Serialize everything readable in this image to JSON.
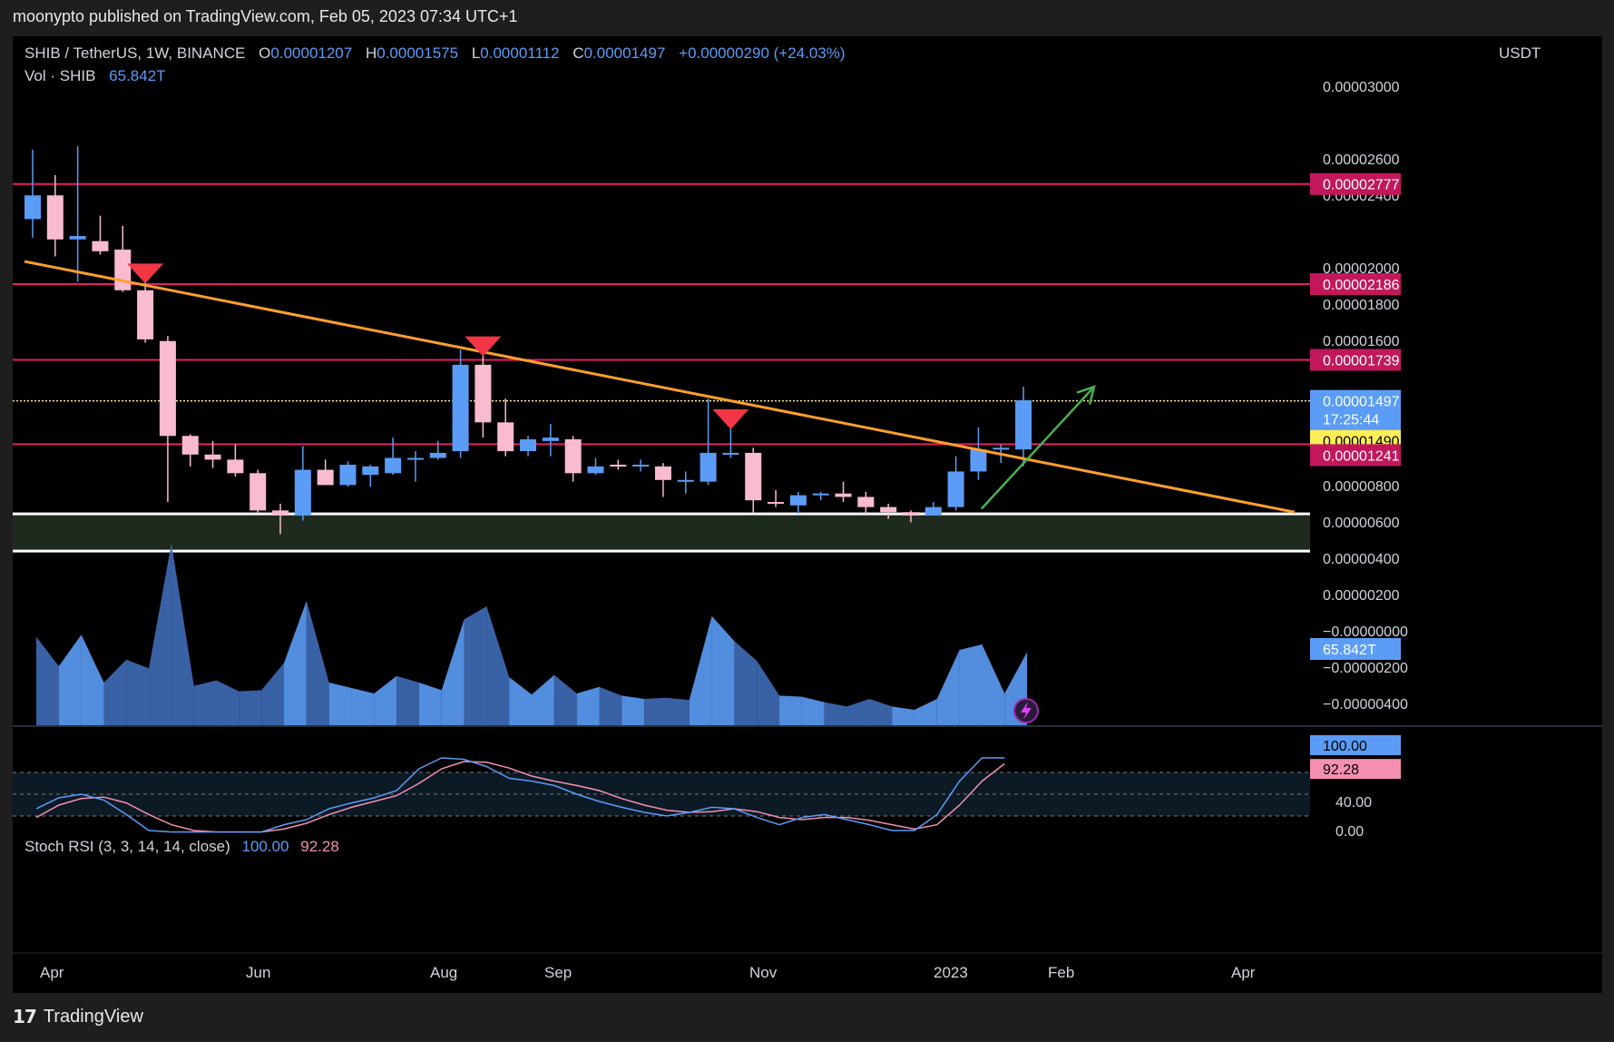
{
  "header": {
    "published_text": "moonypto published on TradingView.com, Feb 05, 2023 07:34 UTC+1"
  },
  "legend": {
    "symbol": "SHIB / TetherUS, 1W, BINANCE",
    "o_label": "O",
    "o_value": "0.00001207",
    "h_label": "H",
    "h_value": "0.00001575",
    "l_label": "L",
    "l_value": "0.00001112",
    "c_label": "C",
    "c_value": "0.00001497",
    "change": "+0.00000290 (+24.03%)",
    "vol_label": "Vol · SHIB",
    "vol_value": "65.842T"
  },
  "price_axis": {
    "unit": "USDT",
    "ticks": [
      "0.00003000",
      "0.00002600",
      "0.00002400",
      "0.00002000",
      "0.00001800",
      "0.00001600",
      "0.00001000",
      "0.00000800",
      "0.00000600",
      "0.00000400",
      "0.00000200",
      "−0.00000000",
      "−0.00000200",
      "−0.00000400"
    ],
    "badges": {
      "r1": "0.00002777",
      "r2": "0.00002186",
      "r3": "0.00001739",
      "last": "0.00001497",
      "countdown": "17:25:44",
      "yellow": "0.00001490",
      "r4": "0.00001241",
      "vol": "65.842T"
    }
  },
  "stoch_rsi": {
    "label": "Stoch RSI (3, 3, 14, 14, close)",
    "k_value": "100.00",
    "d_value": "92.28",
    "ticks": [
      "100.00",
      "40.00",
      "0.00"
    ],
    "badge_k": "100.00",
    "badge_d": "92.28"
  },
  "time_axis": [
    "Apr",
    "Jun",
    "Aug",
    "Sep",
    "Nov",
    "2023",
    "Feb",
    "Apr"
  ],
  "footer": {
    "brand": "TradingView"
  },
  "colors": {
    "up": "#5b9cf6",
    "down": "#f8bbd0",
    "resistance": "#e91e63",
    "trend": "#ff9f2e",
    "support_band": "#1f2a1f",
    "yellow_line": "#ffee90",
    "stoch_k": "#5b9cf6",
    "stoch_d": "#f48fb1"
  },
  "chart_data": {
    "type": "candlestick",
    "title": "SHIB / TetherUS, 1W, BINANCE",
    "ylabel": "USDT",
    "ylim": [
      -4.5e-06,
      3.14e-05
    ],
    "horizontal_levels": [
      2.777e-05,
      2.186e-05,
      1.739e-05,
      1.497e-05,
      1.241e-05
    ],
    "support_zone": [
      6.1e-06,
      8.3e-06
    ],
    "candles": [
      {
        "o": 2.57e-05,
        "h": 2.98e-05,
        "l": 2.46e-05,
        "c": 2.71e-05
      },
      {
        "o": 2.71e-05,
        "h": 2.83e-05,
        "l": 2.35e-05,
        "c": 2.45e-05
      },
      {
        "o": 2.45e-05,
        "h": 3e-05,
        "l": 2.2e-05,
        "c": 2.47e-05
      },
      {
        "o": 2.44e-05,
        "h": 2.59e-05,
        "l": 2.36e-05,
        "c": 2.38e-05
      },
      {
        "o": 2.39e-05,
        "h": 2.53e-05,
        "l": 2.14e-05,
        "c": 2.15e-05
      },
      {
        "o": 2.15e-05,
        "h": 2.2e-05,
        "l": 1.84e-05,
        "c": 1.86e-05
      },
      {
        "o": 1.85e-05,
        "h": 1.88e-05,
        "l": 9e-06,
        "c": 1.29e-05
      },
      {
        "o": 1.29e-05,
        "h": 1.3e-05,
        "l": 1.11e-05,
        "c": 1.18e-05
      },
      {
        "o": 1.18e-05,
        "h": 1.26e-05,
        "l": 1.1e-05,
        "c": 1.15e-05
      },
      {
        "o": 1.15e-05,
        "h": 1.24e-05,
        "l": 1.05e-05,
        "c": 1.07e-05
      },
      {
        "o": 1.07e-05,
        "h": 1.09e-05,
        "l": 8.3e-06,
        "c": 8.5e-06
      },
      {
        "o": 8.5e-06,
        "h": 8.9e-06,
        "l": 7.1e-06,
        "c": 8.2e-06
      },
      {
        "o": 8.2e-06,
        "h": 1.23e-05,
        "l": 7.9e-06,
        "c": 1.09e-05
      },
      {
        "o": 1.09e-05,
        "h": 1.15e-05,
        "l": 1e-05,
        "c": 1e-05
      },
      {
        "o": 1e-05,
        "h": 1.14e-05,
        "l": 9.9e-06,
        "c": 1.12e-05
      },
      {
        "o": 1.06e-05,
        "h": 1.12e-05,
        "l": 9.9e-06,
        "c": 1.11e-05
      },
      {
        "o": 1.07e-05,
        "h": 1.28e-05,
        "l": 1.06e-05,
        "c": 1.16e-05
      },
      {
        "o": 1.16e-05,
        "h": 1.2e-05,
        "l": 1.02e-05,
        "c": 1.16e-05
      },
      {
        "o": 1.16e-05,
        "h": 1.26e-05,
        "l": 1.15e-05,
        "c": 1.19e-05
      },
      {
        "o": 1.2e-05,
        "h": 1.8e-05,
        "l": 1.16e-05,
        "c": 1.71e-05
      },
      {
        "o": 1.71e-05,
        "h": 1.77e-05,
        "l": 1.28e-05,
        "c": 1.37e-05
      },
      {
        "o": 1.37e-05,
        "h": 1.51e-05,
        "l": 1.17e-05,
        "c": 1.2e-05
      },
      {
        "o": 1.2e-05,
        "h": 1.29e-05,
        "l": 1.17e-05,
        "c": 1.27e-05
      },
      {
        "o": 1.26e-05,
        "h": 1.36e-05,
        "l": 1.17e-05,
        "c": 1.28e-05
      },
      {
        "o": 1.27e-05,
        "h": 1.29e-05,
        "l": 1.02e-05,
        "c": 1.07e-05
      },
      {
        "o": 1.07e-05,
        "h": 1.16e-05,
        "l": 1.06e-05,
        "c": 1.11e-05
      },
      {
        "o": 1.12e-05,
        "h": 1.15e-05,
        "l": 1.09e-05,
        "c": 1.11e-05
      },
      {
        "o": 1.11e-05,
        "h": 1.15e-05,
        "l": 1.08e-05,
        "c": 1.12e-05
      },
      {
        "o": 1.11e-05,
        "h": 1.13e-05,
        "l": 9.3e-06,
        "c": 1.03e-05
      },
      {
        "o": 1.03e-05,
        "h": 1.08e-05,
        "l": 9.5e-06,
        "c": 1.03e-05
      },
      {
        "o": 1.02e-05,
        "h": 1.51e-05,
        "l": 1e-05,
        "c": 1.19e-05
      },
      {
        "o": 1.19e-05,
        "h": 1.34e-05,
        "l": 1.16e-05,
        "c": 1.19e-05
      },
      {
        "o": 1.19e-05,
        "h": 1.22e-05,
        "l": 8.3e-06,
        "c": 9.1e-06
      },
      {
        "o": 9e-06,
        "h": 9.7e-06,
        "l": 8.7e-06,
        "c": 8.9e-06
      },
      {
        "o": 8.8e-06,
        "h": 9.6e-06,
        "l": 8.3e-06,
        "c": 9.4e-06
      },
      {
        "o": 9.4e-06,
        "h": 9.6e-06,
        "l": 9.1e-06,
        "c": 9.5e-06
      },
      {
        "o": 9.5e-06,
        "h": 1.02e-05,
        "l": 9e-06,
        "c": 9.3e-06
      },
      {
        "o": 9.3e-06,
        "h": 9.6e-06,
        "l": 8.2e-06,
        "c": 8.7e-06
      },
      {
        "o": 8.7e-06,
        "h": 8.9e-06,
        "l": 8e-06,
        "c": 8.4e-06
      },
      {
        "o": 8.4e-06,
        "h": 8.5e-06,
        "l": 7.8e-06,
        "c": 8.2e-06
      },
      {
        "o": 8.2e-06,
        "h": 9e-06,
        "l": 8.2e-06,
        "c": 8.7e-06
      },
      {
        "o": 8.7e-06,
        "h": 1.17e-05,
        "l": 8.5e-06,
        "c": 1.08e-05
      },
      {
        "o": 1.08e-05,
        "h": 1.34e-05,
        "l": 1.03e-05,
        "c": 1.21e-05
      },
      {
        "o": 1.21e-05,
        "h": 1.24e-05,
        "l": 1.13e-05,
        "c": 1.22e-05
      },
      {
        "o": 1.21e-05,
        "h": 1.58e-05,
        "l": 1.11e-05,
        "c": 1.5e-05
      }
    ],
    "trendline": [
      [
        0,
        2.32e-05
      ],
      [
        56,
        8.4e-06
      ]
    ],
    "resistance_markers": [
      5,
      20,
      31
    ],
    "arrow": [
      [
        42.5,
        8.6e-06
      ],
      [
        47.5,
        1.58e-05
      ]
    ],
    "volume": [
      82,
      55,
      84,
      40,
      61,
      53,
      168,
      37,
      42,
      32,
      33,
      58,
      115,
      40,
      35,
      30,
      46,
      40,
      33,
      98,
      110,
      45,
      29,
      47,
      30,
      36,
      28,
      25,
      26,
      24,
      101,
      78,
      60,
      28,
      27,
      22,
      18,
      25,
      18,
      15,
      25,
      70,
      75,
      30,
      68
    ],
    "volume_up": [
      true,
      false,
      true,
      true,
      false,
      false,
      false,
      false,
      false,
      false,
      false,
      false,
      true,
      false,
      true,
      true,
      true,
      false,
      true,
      true,
      false,
      false,
      true,
      true,
      false,
      true,
      false,
      true,
      false,
      false,
      true,
      true,
      false,
      false,
      true,
      true,
      false,
      false,
      false,
      true,
      true,
      true,
      true,
      true,
      true
    ],
    "vol_max": 175,
    "stoch_k": [
      30,
      45,
      50,
      42,
      22,
      0,
      -2,
      -2,
      -2,
      -2,
      -2,
      8,
      15,
      30,
      38,
      45,
      55,
      85,
      100,
      98,
      88,
      72,
      68,
      62,
      50,
      40,
      32,
      25,
      20,
      25,
      32,
      30,
      18,
      8,
      18,
      22,
      15,
      8,
      0,
      0,
      22,
      68,
      100,
      100
    ],
    "stoch_d": [
      18,
      35,
      44,
      46,
      38,
      22,
      8,
      0,
      -2,
      -2,
      -2,
      2,
      10,
      22,
      32,
      40,
      48,
      65,
      85,
      95,
      94,
      86,
      75,
      68,
      62,
      55,
      44,
      35,
      28,
      25,
      26,
      30,
      26,
      18,
      15,
      18,
      18,
      14,
      8,
      2,
      8,
      35,
      68,
      92
    ]
  }
}
